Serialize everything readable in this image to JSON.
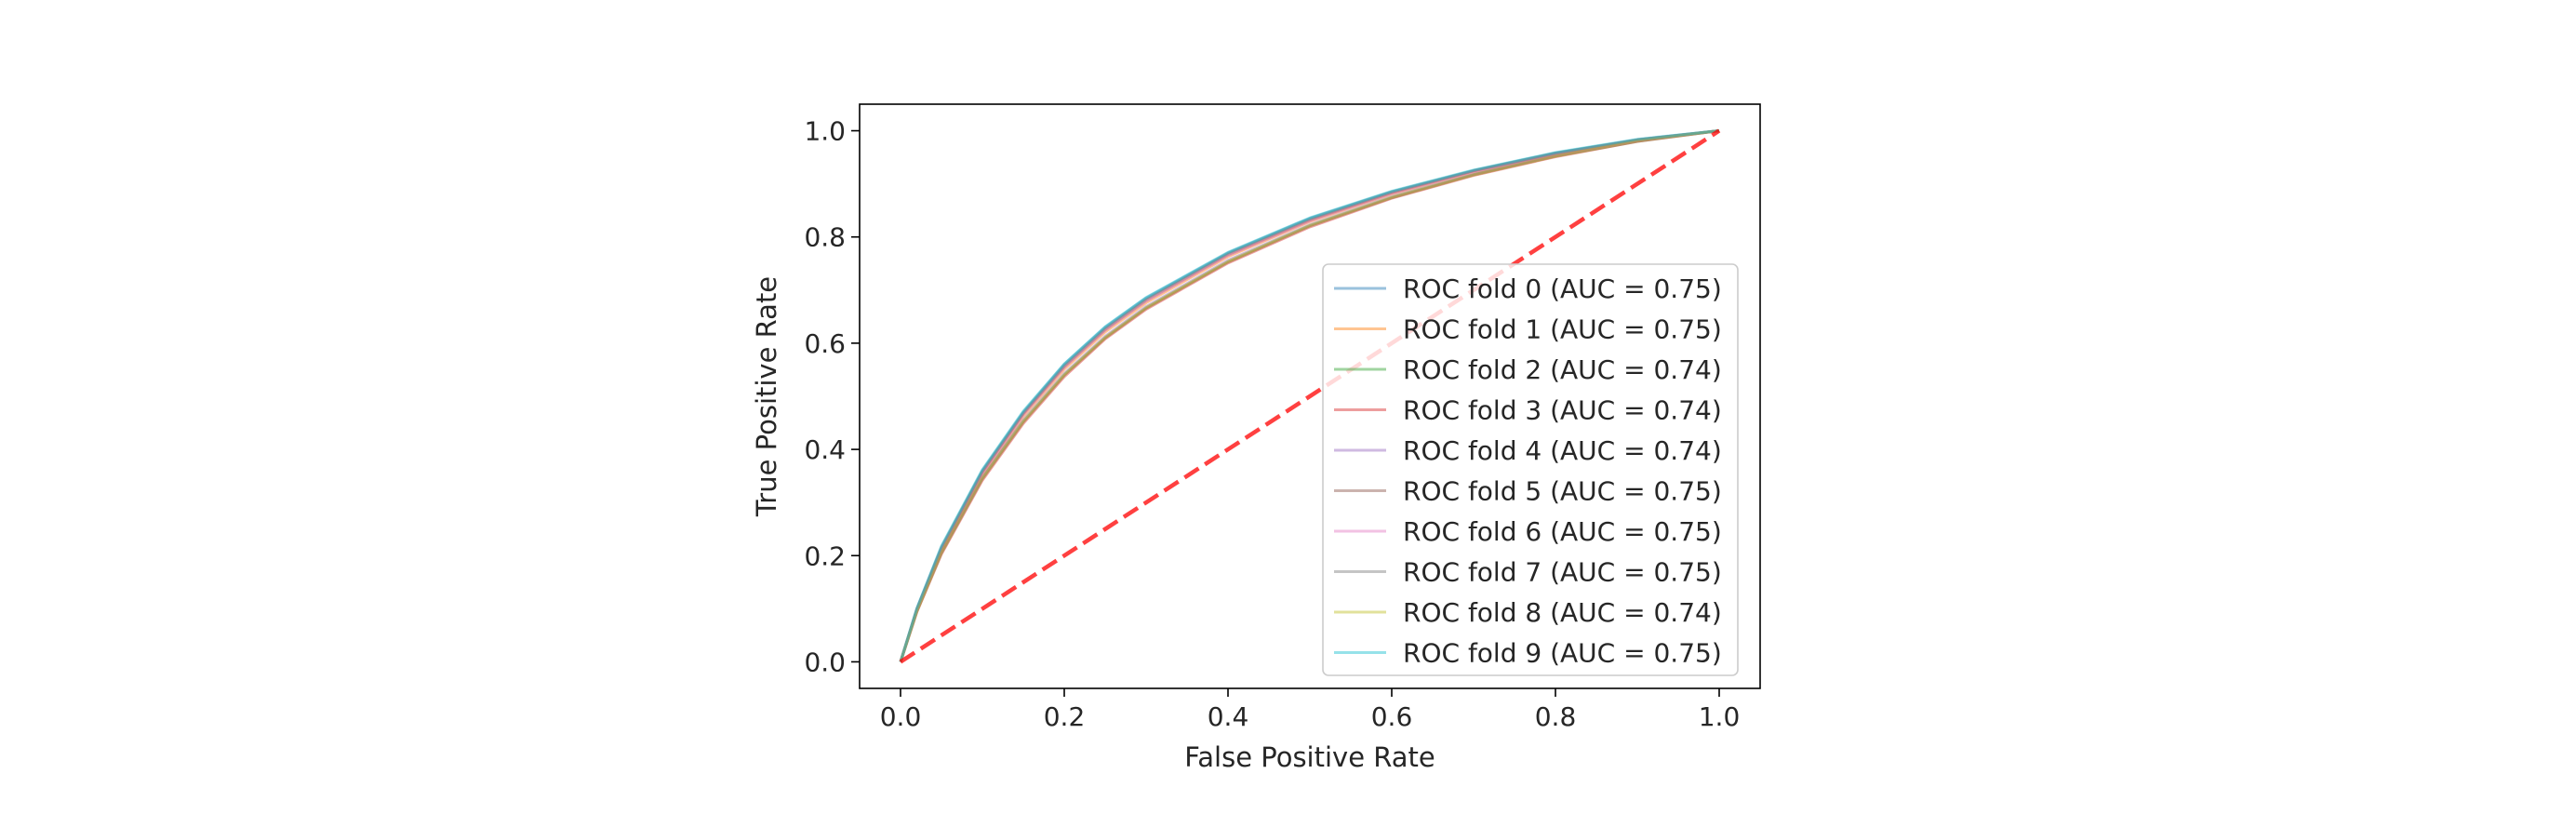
{
  "chart_data": {
    "type": "line",
    "title": "",
    "xlabel": "False Positive Rate",
    "ylabel": "True Positive Rate",
    "xlim": [
      -0.05,
      1.05
    ],
    "ylim": [
      -0.05,
      1.05
    ],
    "x_ticks": [
      "0.0",
      "0.2",
      "0.4",
      "0.6",
      "0.8",
      "1.0"
    ],
    "y_ticks": [
      "0.0",
      "0.2",
      "0.4",
      "0.6",
      "0.8",
      "1.0"
    ],
    "grid": false,
    "legend_position": "lower-right",
    "x": [
      0.0,
      0.02,
      0.05,
      0.1,
      0.15,
      0.2,
      0.25,
      0.3,
      0.4,
      0.5,
      0.6,
      0.7,
      0.8,
      0.9,
      1.0
    ],
    "series": [
      {
        "name": "ROC fold 0 (AUC = 0.75)",
        "color": "#1f77b4",
        "values": [
          0.0,
          0.1,
          0.215,
          0.36,
          0.47,
          0.56,
          0.63,
          0.685,
          0.77,
          0.835,
          0.885,
          0.925,
          0.958,
          0.983,
          1.0
        ]
      },
      {
        "name": "ROC fold 1 (AUC = 0.75)",
        "color": "#ff7f0e",
        "values": [
          0.0,
          0.097,
          0.21,
          0.352,
          0.462,
          0.551,
          0.621,
          0.676,
          0.763,
          0.829,
          0.881,
          0.922,
          0.956,
          0.982,
          1.0
        ]
      },
      {
        "name": "ROC fold 2 (AUC = 0.74)",
        "color": "#2ca02c",
        "values": [
          0.0,
          0.095,
          0.205,
          0.345,
          0.452,
          0.54,
          0.61,
          0.666,
          0.753,
          0.821,
          0.874,
          0.917,
          0.952,
          0.98,
          1.0
        ]
      },
      {
        "name": "ROC fold 3 (AUC = 0.74)",
        "color": "#d62728",
        "values": [
          0.0,
          0.094,
          0.203,
          0.342,
          0.449,
          0.537,
          0.608,
          0.664,
          0.751,
          0.819,
          0.873,
          0.916,
          0.951,
          0.98,
          1.0
        ]
      },
      {
        "name": "ROC fold 4 (AUC = 0.74)",
        "color": "#9467bd",
        "values": [
          0.0,
          0.096,
          0.207,
          0.347,
          0.455,
          0.543,
          0.613,
          0.669,
          0.756,
          0.823,
          0.876,
          0.918,
          0.953,
          0.981,
          1.0
        ]
      },
      {
        "name": "ROC fold 5 (AUC = 0.75)",
        "color": "#8c564b",
        "values": [
          0.0,
          0.099,
          0.213,
          0.357,
          0.467,
          0.556,
          0.626,
          0.681,
          0.767,
          0.832,
          0.883,
          0.924,
          0.957,
          0.983,
          1.0
        ]
      },
      {
        "name": "ROC fold 6 (AUC = 0.75)",
        "color": "#e377c2",
        "values": [
          0.0,
          0.098,
          0.212,
          0.354,
          0.465,
          0.554,
          0.624,
          0.679,
          0.765,
          0.83,
          0.882,
          0.923,
          0.956,
          0.982,
          1.0
        ]
      },
      {
        "name": "ROC fold 7 (AUC = 0.75)",
        "color": "#7f7f7f",
        "values": [
          0.0,
          0.1,
          0.216,
          0.359,
          0.469,
          0.558,
          0.628,
          0.683,
          0.769,
          0.834,
          0.885,
          0.925,
          0.958,
          0.983,
          1.0
        ]
      },
      {
        "name": "ROC fold 8 (AUC = 0.74)",
        "color": "#bcbd22",
        "values": [
          0.0,
          0.095,
          0.206,
          0.346,
          0.453,
          0.541,
          0.611,
          0.667,
          0.754,
          0.822,
          0.875,
          0.917,
          0.952,
          0.981,
          1.0
        ]
      },
      {
        "name": "ROC fold 9 (AUC = 0.75)",
        "color": "#17becf",
        "values": [
          0.0,
          0.101,
          0.218,
          0.362,
          0.472,
          0.561,
          0.631,
          0.686,
          0.771,
          0.836,
          0.886,
          0.926,
          0.959,
          0.984,
          1.0
        ]
      }
    ],
    "reference_line": {
      "x": [
        0.0,
        1.0
      ],
      "y": [
        0.0,
        1.0
      ],
      "color": "#ff0000",
      "style": "dashed"
    }
  }
}
